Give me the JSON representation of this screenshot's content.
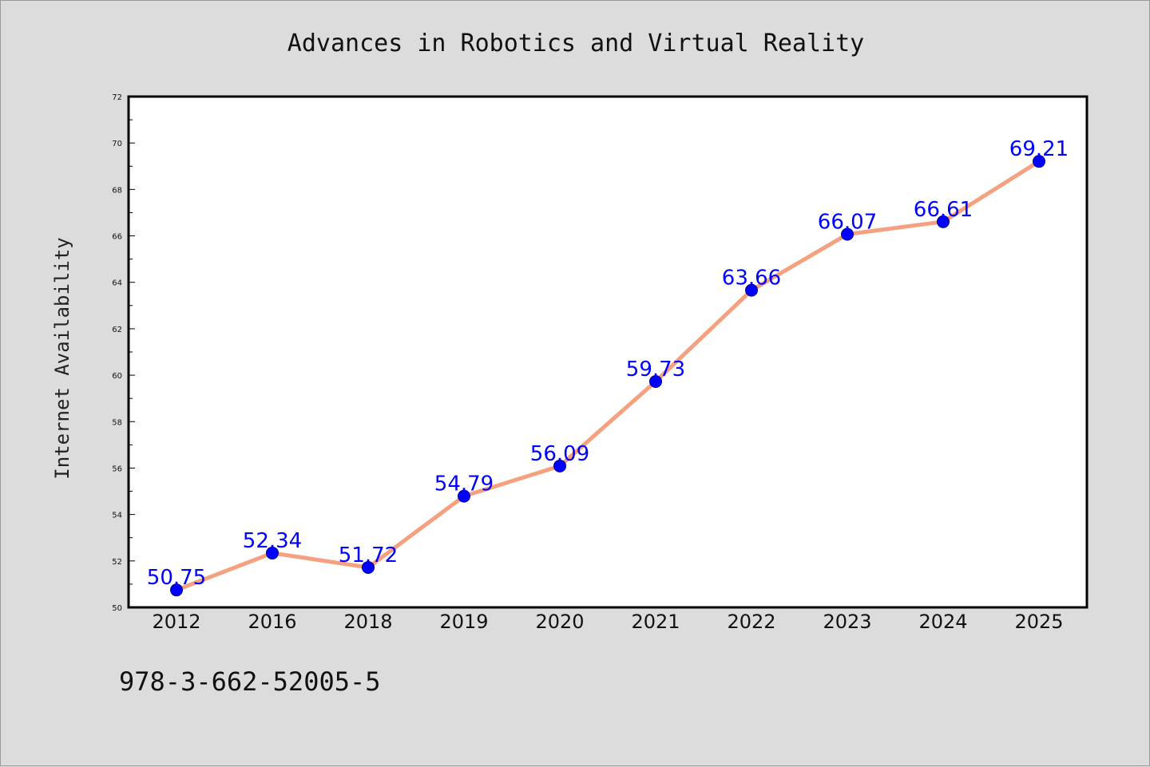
{
  "chart_data": {
    "type": "line",
    "title": "Advances in Robotics and Virtual Reality",
    "xlabel": "",
    "ylabel": "Internet Availability",
    "categories": [
      "2012",
      "2016",
      "2018",
      "2019",
      "2020",
      "2021",
      "2022",
      "2023",
      "2024",
      "2025"
    ],
    "series": [
      {
        "values": [
          50.75,
          52.34,
          51.72,
          54.79,
          56.09,
          59.73,
          63.66,
          66.07,
          66.61,
          69.21
        ],
        "data_labels": [
          "50.75",
          "52.34",
          "51.72",
          "54.79",
          "56.09",
          "59.73",
          "63.66",
          "66.07",
          "66.61",
          "69.21"
        ],
        "line_color": "#f5a07e",
        "marker_color": "#0000ff"
      }
    ],
    "ylim": [
      50,
      72
    ],
    "yticks": [
      "50",
      "52",
      "54",
      "56",
      "58",
      "60",
      "62",
      "64",
      "66",
      "68",
      "70",
      "72"
    ],
    "grid": false,
    "legend": "none"
  },
  "footer": {
    "isbn": "978-3-662-52005-5"
  },
  "colors": {
    "background": "#dcdcdc",
    "plot_area": "#ffffff",
    "label": "#0000ff"
  }
}
